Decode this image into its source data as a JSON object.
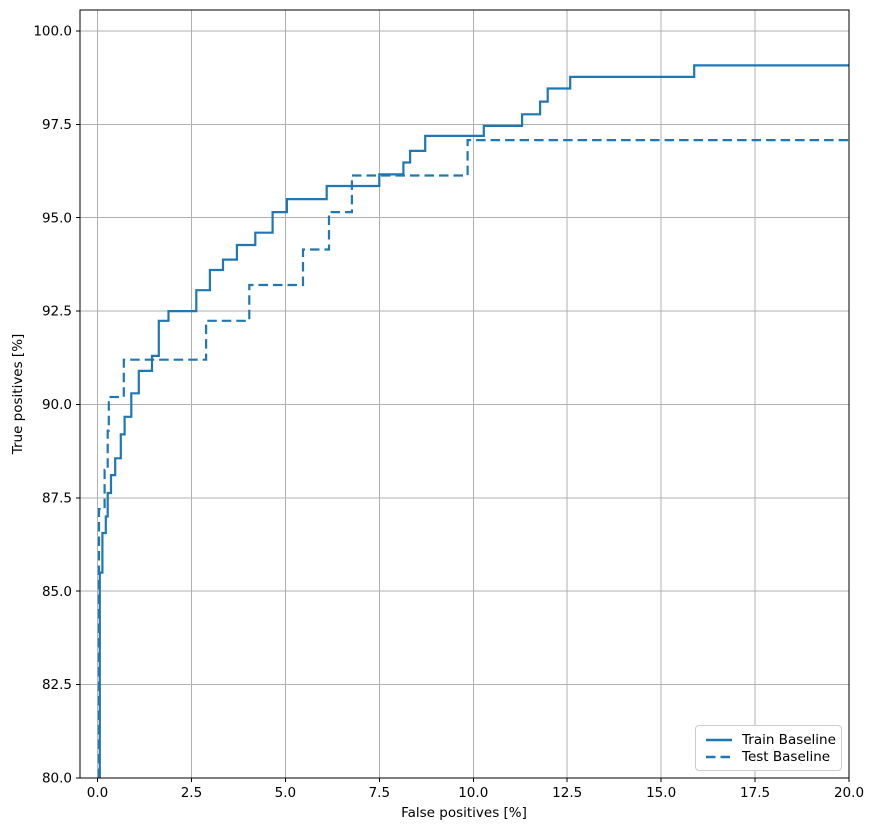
{
  "chart_data": {
    "type": "line",
    "title": "",
    "xlabel": "False positives [%]",
    "ylabel": "True positives [%]",
    "xlim": [
      -0.466,
      20.0
    ],
    "ylim": [
      80.0,
      100.562
    ],
    "grid": true,
    "grid_color": "#b0b0b0",
    "spine_color": "#000000",
    "line_color": "#1f77b4",
    "xtick_values": [
      0,
      2.5,
      5,
      7.5,
      10,
      12.5,
      15,
      17.5,
      20
    ],
    "xtick_labels": [
      "0.0",
      "2.5",
      "5.0",
      "7.5",
      "10.0",
      "12.5",
      "15.0",
      "17.5",
      "20.0"
    ],
    "ytick_values": [
      80,
      82.5,
      85,
      87.5,
      90,
      92.5,
      95,
      97.5,
      100
    ],
    "ytick_labels": [
      "80.0",
      "82.5",
      "85.0",
      "87.5",
      "90.0",
      "92.5",
      "95.0",
      "97.5",
      "100.0"
    ],
    "legend": {
      "position": "lower right"
    },
    "series": [
      {
        "name": "Train Baseline",
        "style": "solid",
        "drawstyle": "steps-post",
        "points": [
          [
            0.06,
            80.0
          ],
          [
            0.06,
            85.5
          ],
          [
            0.13,
            86.56
          ],
          [
            0.22,
            87.0
          ],
          [
            0.27,
            87.63
          ],
          [
            0.36,
            88.11
          ],
          [
            0.47,
            88.56
          ],
          [
            0.62,
            89.2
          ],
          [
            0.72,
            89.67
          ],
          [
            0.9,
            90.3
          ],
          [
            1.1,
            90.9
          ],
          [
            1.45,
            91.3
          ],
          [
            1.63,
            92.24
          ],
          [
            1.89,
            92.5
          ],
          [
            2.63,
            93.06
          ],
          [
            2.99,
            93.6
          ],
          [
            3.34,
            93.88
          ],
          [
            3.71,
            94.27
          ],
          [
            4.2,
            94.6
          ],
          [
            4.66,
            95.15
          ],
          [
            5.04,
            95.5
          ],
          [
            6.1,
            95.85
          ],
          [
            7.5,
            96.16
          ],
          [
            8.14,
            96.48
          ],
          [
            8.32,
            96.79
          ],
          [
            8.72,
            97.19
          ],
          [
            10.28,
            97.46
          ],
          [
            11.3,
            97.77
          ],
          [
            11.78,
            98.11
          ],
          [
            11.98,
            98.46
          ],
          [
            12.58,
            98.77
          ],
          [
            15.88,
            99.08
          ],
          [
            20.0,
            99.08
          ]
        ]
      },
      {
        "name": "Test Baseline",
        "style": "dashed",
        "drawstyle": "steps-post",
        "points": [
          [
            0.04,
            80.0
          ],
          [
            0.04,
            87.2
          ],
          [
            0.19,
            88.25
          ],
          [
            0.27,
            89.3
          ],
          [
            0.3,
            90.2
          ],
          [
            0.7,
            91.2
          ],
          [
            2.89,
            92.24
          ],
          [
            4.04,
            93.2
          ],
          [
            5.47,
            94.15
          ],
          [
            6.16,
            95.15
          ],
          [
            6.77,
            96.13
          ],
          [
            9.85,
            97.08
          ],
          [
            20.0,
            97.08
          ]
        ]
      }
    ]
  }
}
